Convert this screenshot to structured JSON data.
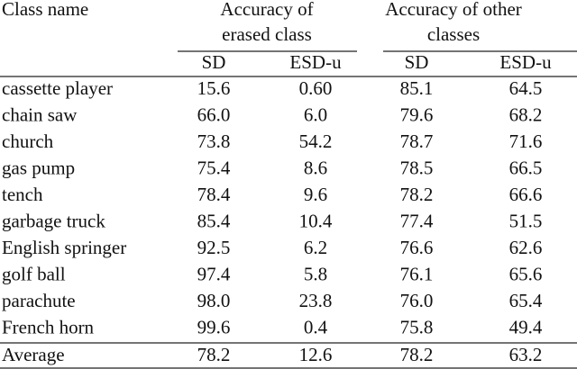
{
  "table": {
    "header": {
      "class_name": "Class name",
      "groups": [
        {
          "lines": [
            "Accuracy of",
            "erased class"
          ],
          "columns": [
            "SD",
            "ESD-u"
          ]
        },
        {
          "lines": [
            "Accuracy of other",
            "classes"
          ],
          "columns": [
            "SD",
            "ESD-u"
          ]
        }
      ]
    },
    "rows": [
      [
        "cassette player",
        "15.6",
        "0.60",
        "85.1",
        "64.5"
      ],
      [
        "chain saw",
        "66.0",
        "6.0",
        "79.6",
        "68.2"
      ],
      [
        "church",
        "73.8",
        "54.2",
        "78.7",
        "71.6"
      ],
      [
        "gas pump",
        "75.4",
        "8.6",
        "78.5",
        "66.5"
      ],
      [
        "tench",
        "78.4",
        "9.6",
        "78.2",
        "66.6"
      ],
      [
        "garbage truck",
        "85.4",
        "10.4",
        "77.4",
        "51.5"
      ],
      [
        "English springer",
        "92.5",
        "6.2",
        "76.6",
        "62.6"
      ],
      [
        "golf ball",
        "97.4",
        "5.8",
        "76.1",
        "65.6"
      ],
      [
        "parachute",
        "98.0",
        "23.8",
        "76.0",
        "65.4"
      ],
      [
        "French horn",
        "99.6",
        "0.4",
        "75.8",
        "49.4"
      ]
    ],
    "footer": [
      "Average",
      "78.2",
      "12.6",
      "78.2",
      "63.2"
    ]
  }
}
